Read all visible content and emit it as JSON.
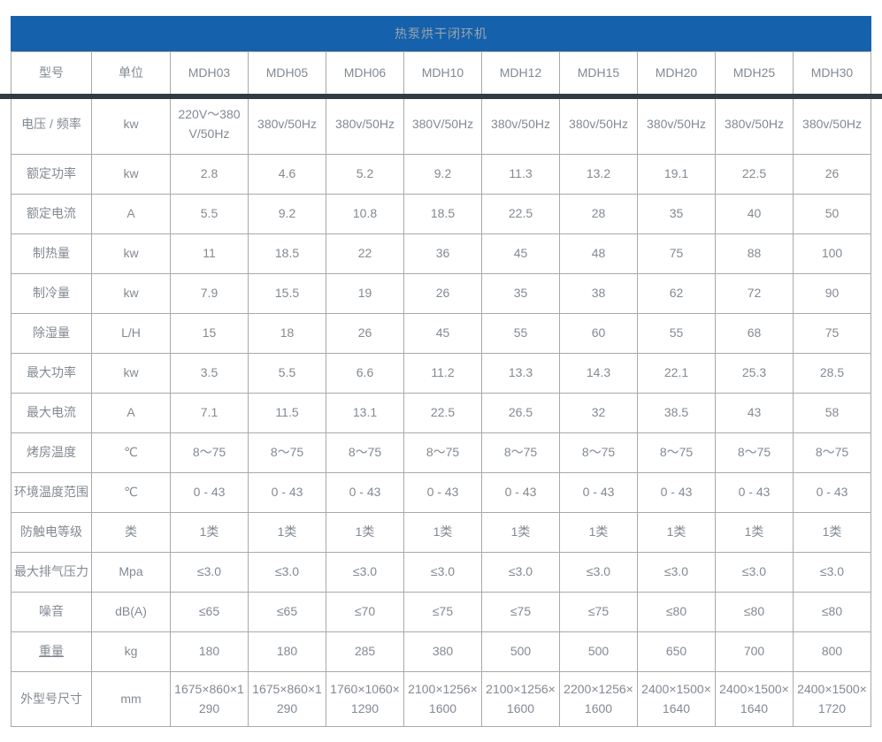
{
  "title": "热泵烘干闭环机",
  "colors": {
    "header_bg": "#1561ac",
    "header_text": "#9aa5ad",
    "cell_text": "#828a92",
    "grid_border": "#a9a9a9",
    "bottom_bar": "#333b44"
  },
  "table": {
    "columns": [
      "型号",
      "单位",
      "MDH03",
      "MDH05",
      "MDH06",
      "MDH10",
      "MDH12",
      "MDH15",
      "MDH20",
      "MDH25",
      "MDH30"
    ],
    "rows": [
      {
        "label": "电压 / 频率",
        "unit": "kw",
        "values": [
          "220V～380 V/50Hz",
          "380v/50Hz",
          "380v/50Hz",
          "380V/50Hz",
          "380v/50Hz",
          "380v/50Hz",
          "380v/50Hz",
          "380v/50Hz",
          "380v/50Hz"
        ]
      },
      {
        "label": "额定功率",
        "unit": "kw",
        "values": [
          "2.8",
          "4.6",
          "5.2",
          "9.2",
          "11.3",
          "13.2",
          "19.1",
          "22.5",
          "26"
        ]
      },
      {
        "label": "额定电流",
        "unit": "A",
        "values": [
          "5.5",
          "9.2",
          "10.8",
          "18.5",
          "22.5",
          "28",
          "35",
          "40",
          "50"
        ]
      },
      {
        "label": "制热量",
        "unit": "kw",
        "values": [
          "11",
          "18.5",
          "22",
          "36",
          "45",
          "48",
          "75",
          "88",
          "100"
        ]
      },
      {
        "label": "制冷量",
        "unit": "kw",
        "values": [
          "7.9",
          "15.5",
          "19",
          "26",
          "35",
          "38",
          "62",
          "72",
          "90"
        ]
      },
      {
        "label": "除湿量",
        "unit": "L/H",
        "values": [
          "15",
          "18",
          "26",
          "45",
          "55",
          "60",
          "55",
          "68",
          "75"
        ]
      },
      {
        "label": "最大功率",
        "unit": "kw",
        "values": [
          "3.5",
          "5.5",
          "6.6",
          "11.2",
          "13.3",
          "14.3",
          "22.1",
          "25.3",
          "28.5"
        ]
      },
      {
        "label": "最大电流",
        "unit": "A",
        "values": [
          "7.1",
          "11.5",
          "13.1",
          "22.5",
          "26.5",
          "32",
          "38.5",
          "43",
          "58"
        ]
      },
      {
        "label": "烤房温度",
        "unit": "℃",
        "values": [
          "8～75",
          "8～75",
          "8～75",
          "8～75",
          "8～75",
          "8～75",
          "8～75",
          "8～75",
          "8～75"
        ]
      },
      {
        "label": "环境温度范围",
        "unit": "℃",
        "values": [
          "0 - 43",
          "0 - 43",
          "0 - 43",
          "0 - 43",
          "0 - 43",
          "0 - 43",
          "0 - 43",
          "0 - 43",
          "0 - 43"
        ]
      },
      {
        "label": "防触电等级",
        "unit": "类",
        "values": [
          "1类",
          "1类",
          "1类",
          "1类",
          "1类",
          "1类",
          "1类",
          "1类",
          "1类"
        ]
      },
      {
        "label": "最大排气压力",
        "unit": "Mpa",
        "values": [
          "≤3.0",
          "≤3.0",
          "≤3.0",
          "≤3.0",
          "≤3.0",
          "≤3.0",
          "≤3.0",
          "≤3.0",
          "≤3.0"
        ]
      },
      {
        "label": "噪音",
        "unit": "dB(A)",
        "values": [
          "≤65",
          "≤65",
          "≤70",
          "≤75",
          "≤75",
          "≤75",
          "≤80",
          "≤80",
          "≤80"
        ]
      },
      {
        "label": "重量",
        "unit": "kg",
        "underline": true,
        "values": [
          "180",
          "180",
          "285",
          "380",
          "500",
          "500",
          "650",
          "700",
          "800"
        ]
      },
      {
        "label": "外型号尺寸",
        "unit": "mm",
        "values": [
          "1675×860×1290",
          "1675×860×1290",
          "1760×1060×1290",
          "2100×1256×1600",
          "2100×1256×1600",
          "2200×1256×1600",
          "2400×1500×1640",
          "2400×1500×1640",
          "2400×1500×1720"
        ]
      }
    ]
  }
}
